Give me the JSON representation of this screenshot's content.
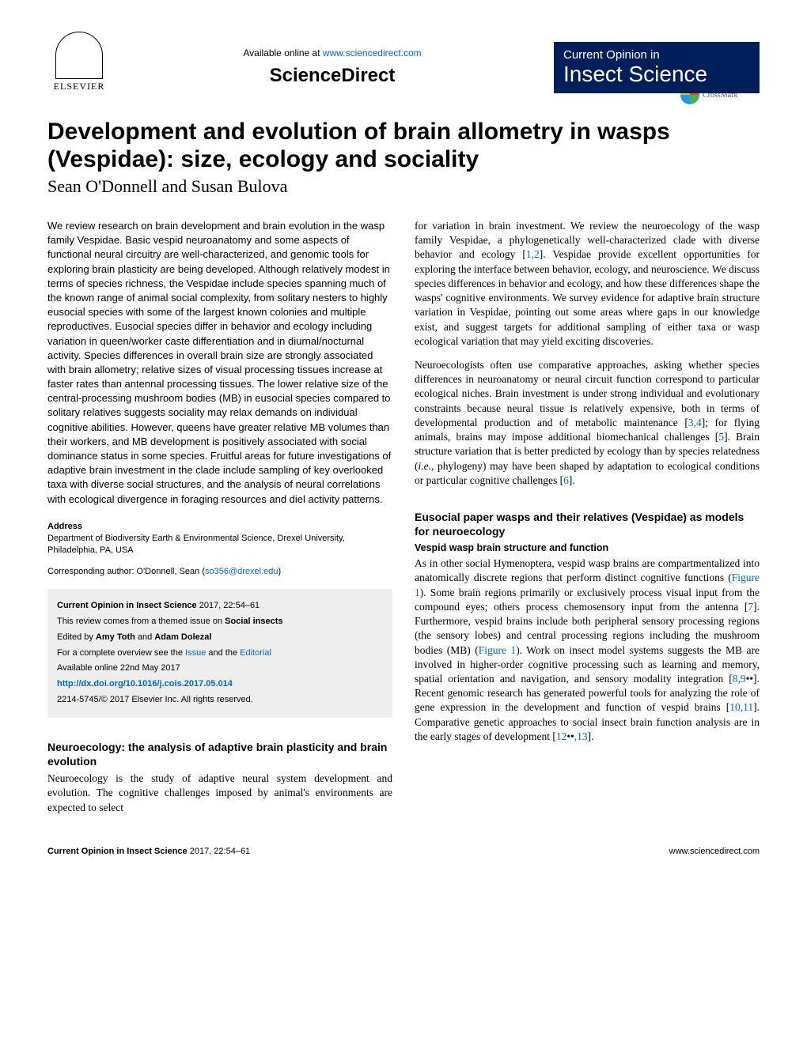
{
  "header": {
    "available_online": "Available online at",
    "available_url": "www.sciencedirect.com",
    "sciencedirect": "ScienceDirect",
    "elsevier": "ELSEVIER",
    "journal_top": "Current Opinion in",
    "journal_main": "Insect Science",
    "journal_bg": "#001f5b",
    "journal_fg": "#ffffff"
  },
  "title": "Development and evolution of brain allometry in wasps (Vespidae): size, ecology and sociality",
  "authors": "Sean O'Donnell and Susan Bulova",
  "crossmark": "CrossMark",
  "abstract": "We review research on brain development and brain evolution in the wasp family Vespidae. Basic vespid neuroanatomy and some aspects of functional neural circuitry are well-characterized, and genomic tools for exploring brain plasticity are being developed. Although relatively modest in terms of species richness, the Vespidae include species spanning much of the known range of animal social complexity, from solitary nesters to highly eusocial species with some of the largest known colonies and multiple reproductives. Eusocial species differ in behavior and ecology including variation in queen/worker caste differentiation and in diurnal/nocturnal activity. Species differences in overall brain size are strongly associated with brain allometry; relative sizes of visual processing tissues increase at faster rates than antennal processing tissues. The lower relative size of the central-processing mushroom bodies (MB) in eusocial species compared to solitary relatives suggests sociality may relax demands on individual cognitive abilities. However, queens have greater relative MB volumes than their workers, and MB development is positively associated with social dominance status in some species. Fruitful areas for future investigations of adaptive brain investment in the clade include sampling of key overlooked taxa with diverse social structures, and the analysis of neural correlations with ecological divergence in foraging resources and diel activity patterns.",
  "address": {
    "label": "Address",
    "text": "Department of Biodiversity Earth & Environmental Science, Drexel University, Philadelphia, PA, USA"
  },
  "corresponding": {
    "prefix": "Corresponding author: O'Donnell, Sean (",
    "email": "so356@drexel.edu",
    "suffix": ")"
  },
  "infobox": {
    "citation": "Current Opinion in Insect Science",
    "citation_detail": " 2017, 22:54–61",
    "review_from_1": "This review comes from a themed issue on ",
    "review_from_2": "Social insects",
    "edited_by_1": "Edited by ",
    "edited_by_2": "Amy Toth",
    "edited_by_3": " and ",
    "edited_by_4": "Adam Dolezal",
    "overview_1": "For a complete overview see the ",
    "overview_issue": "Issue",
    "overview_2": " and the ",
    "overview_editorial": "Editorial",
    "available": "Available online 22nd May 2017",
    "doi": "http://dx.doi.org/10.1016/j.cois.2017.05.014",
    "copyright": "2214-5745/© 2017 Elsevier Inc. All rights reserved."
  },
  "left_section": {
    "heading": "Neuroecology: the analysis of adaptive brain plasticity and brain evolution",
    "text": "Neuroecology is the study of adaptive neural system development and evolution. The cognitive challenges imposed by animal's environments are expected to select"
  },
  "right_col": {
    "p1_a": "for variation in brain investment. We review the neuroecology of the wasp family Vespidae, a phylogenetically well-characterized clade with diverse behavior and ecology [",
    "p1_c1": "1,2",
    "p1_b": "]. Vespidae provide excellent opportunities for exploring the interface between behavior, ecology, and neuroscience. We discuss species differences in behavior and ecology, and how these differences shape the wasps' cognitive environments. We survey evidence for adaptive brain structure variation in Vespidae, pointing out some areas where gaps in our knowledge exist, and suggest targets for additional sampling of either taxa or wasp ecological variation that may yield exciting discoveries.",
    "p2_a": "Neuroecologists often use comparative approaches, asking whether species differences in neuroanatomy or neural circuit function correspond to particular ecological niches. Brain investment is under strong individual and evolutionary constraints because neural tissue is relatively expensive, both in terms of developmental production and of metabolic maintenance [",
    "p2_c1": "3,4",
    "p2_b": "]; for flying animals, brains may impose additional biomechanical challenges [",
    "p2_c2": "5",
    "p2_c": "]. Brain structure variation that is better predicted by ecology than by species relatedness (",
    "p2_ie": "i.e.",
    "p2_d": ", phylogeny) may have been shaped by adaptation to ecological conditions or particular cognitive challenges [",
    "p2_c3": "6",
    "p2_e": "].",
    "sec2_heading": "Eusocial paper wasps and their relatives (Vespidae) as models for neuroecology",
    "sec2_sub": "Vespid wasp brain structure and function",
    "p3_a": "As in other social Hymenoptera, vespid wasp brains are compartmentalized into anatomically discrete regions that perform distinct cognitive functions (",
    "p3_f1": "Figure 1",
    "p3_b": "). Some brain regions primarily or exclusively process visual input from the compound eyes; others process chemosensory input from the antenna [",
    "p3_c1": "7",
    "p3_c": "]. Furthermore, vespid brains include both peripheral sensory processing regions (the sensory lobes) and central processing regions including the mushroom bodies (MB) (",
    "p3_f2": "Figure 1",
    "p3_d": "). Work on insect model systems suggests the MB are involved in higher-order cognitive processing such as learning and memory, spatial orientation and navigation, and sensory modality integration [",
    "p3_c2": "8,9",
    "p3_bul1": "••",
    "p3_e": "]. Recent genomic research has generated powerful tools for analyzing the role of gene expression in the development and function of vespid brains [",
    "p3_c3": "10,11",
    "p3_f": "]. Comparative genetic approaches to social insect brain function analysis are in the early stages of development [",
    "p3_c4": "12",
    "p3_bul2": "••",
    "p3_c5": ",13",
    "p3_g": "]."
  },
  "footer": {
    "left_bold": "Current Opinion in Insect Science",
    "left_rest": " 2017, 22:54–61",
    "right": "www.sciencedirect.com"
  },
  "colors": {
    "link": "#0066cc",
    "infobox_bg": "#eeeeee",
    "text": "#000000"
  }
}
